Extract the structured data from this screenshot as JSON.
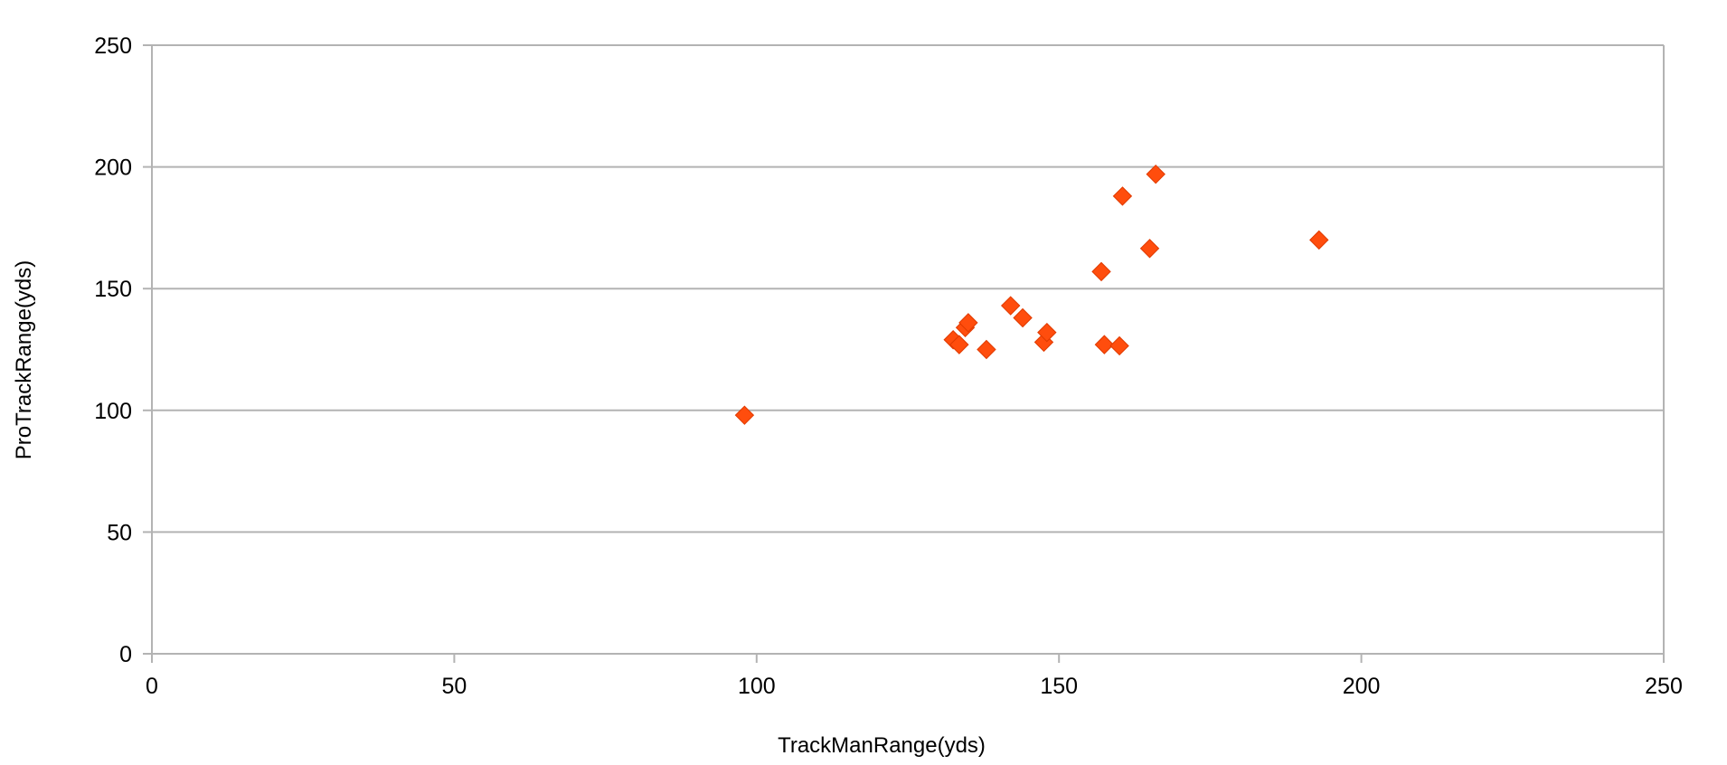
{
  "chart_data": {
    "type": "scatter",
    "xlabel": "TrackManRange(yds)",
    "ylabel": "ProTrackRange(yds)",
    "xlim": [
      0,
      250
    ],
    "ylim": [
      0,
      250
    ],
    "xticks": [
      0,
      50,
      100,
      150,
      200,
      250
    ],
    "yticks": [
      0,
      50,
      100,
      150,
      200,
      250
    ],
    "grid": "horizontal",
    "legend": "none",
    "marker": "diamond",
    "marker_color": "#ff4d0d",
    "series": [
      {
        "points": [
          {
            "x": 98,
            "y": 98
          },
          {
            "x": 132.5,
            "y": 129
          },
          {
            "x": 133.5,
            "y": 127
          },
          {
            "x": 134.5,
            "y": 134
          },
          {
            "x": 135,
            "y": 136
          },
          {
            "x": 138,
            "y": 125
          },
          {
            "x": 142,
            "y": 143
          },
          {
            "x": 144,
            "y": 138
          },
          {
            "x": 147.5,
            "y": 128
          },
          {
            "x": 148,
            "y": 132
          },
          {
            "x": 157,
            "y": 157
          },
          {
            "x": 157.5,
            "y": 127
          },
          {
            "x": 160,
            "y": 126.5
          },
          {
            "x": 160.5,
            "y": 188
          },
          {
            "x": 165,
            "y": 166.5
          },
          {
            "x": 166,
            "y": 197
          },
          {
            "x": 193,
            "y": 170
          }
        ]
      }
    ]
  }
}
